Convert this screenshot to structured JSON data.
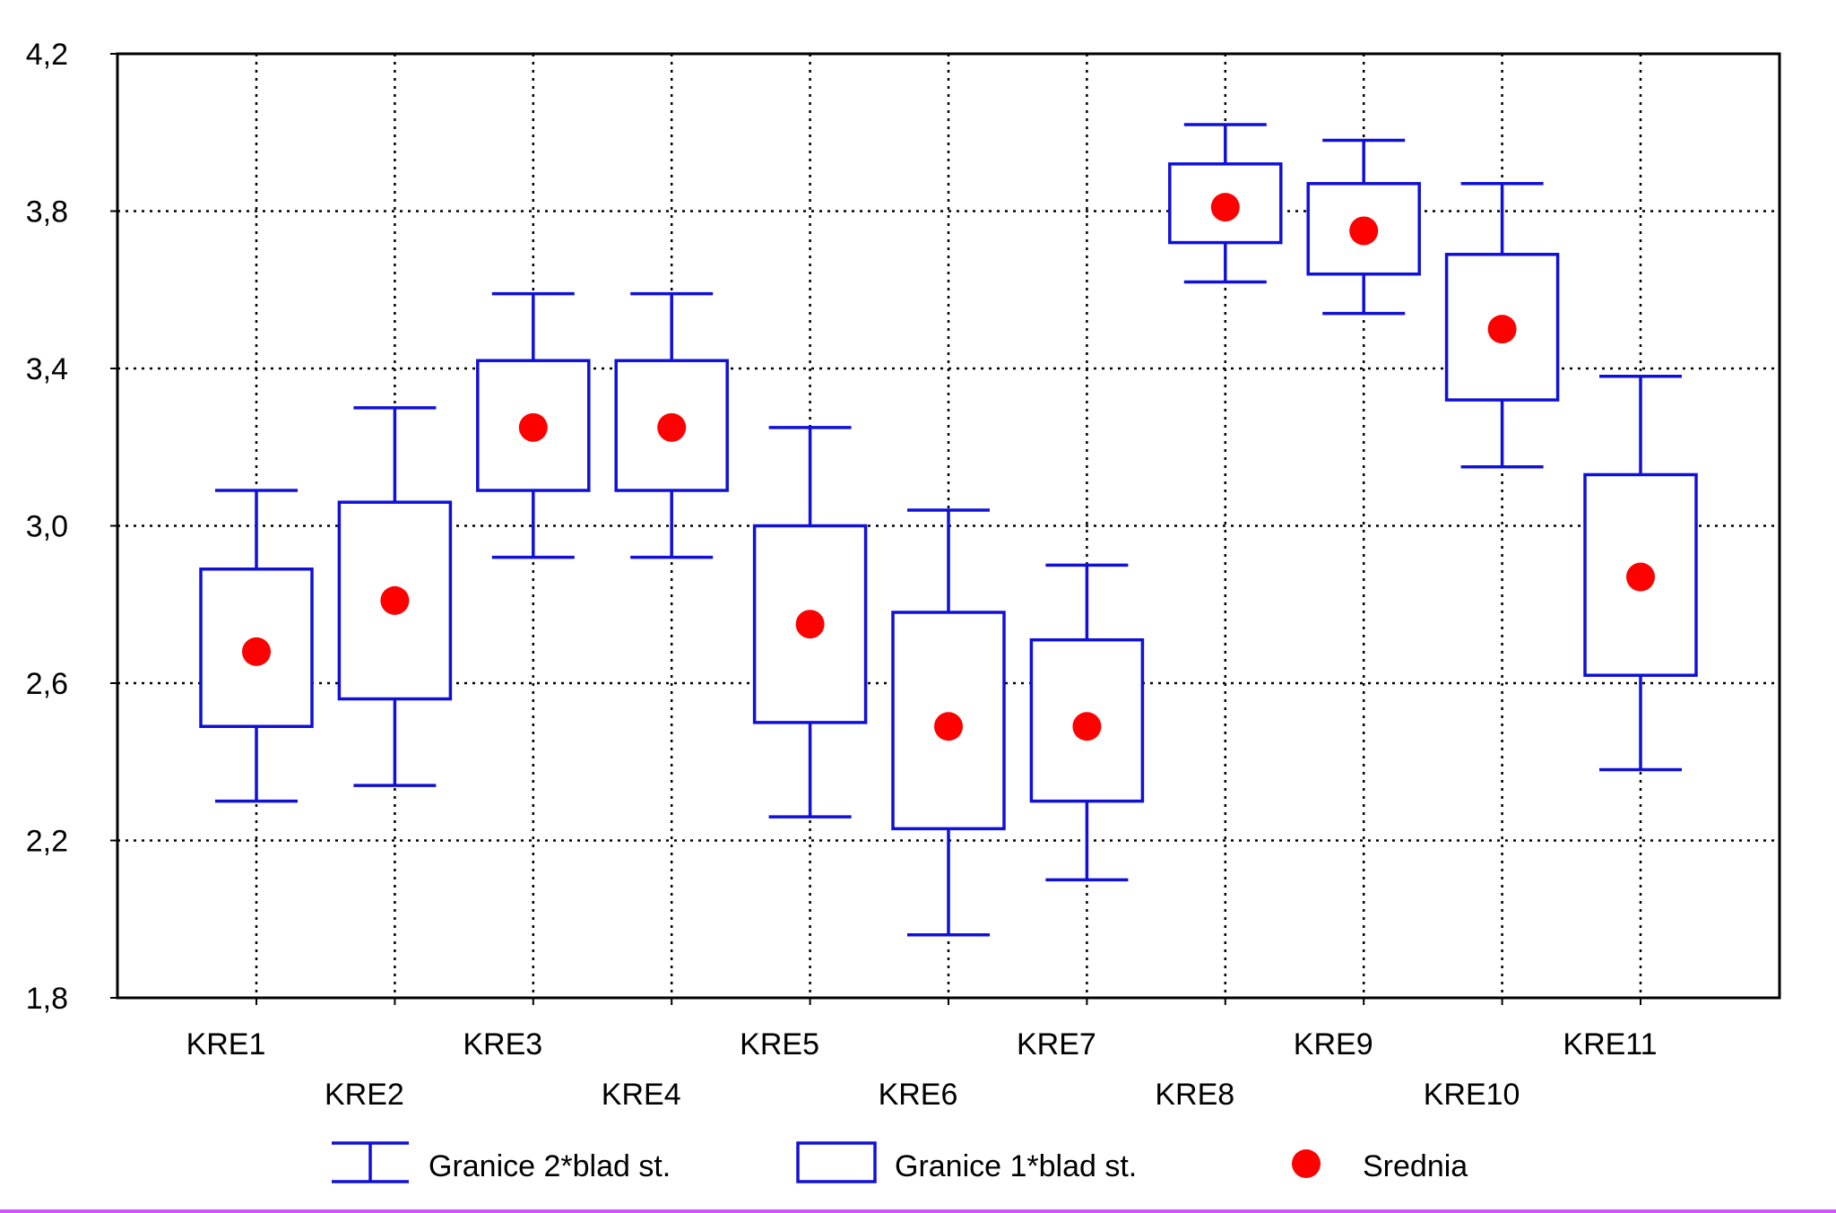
{
  "chart_data": {
    "type": "boxplot",
    "ylim": [
      1.8,
      4.2
    ],
    "yticks": [
      "4,2",
      "3,8",
      "3,4",
      "3,0",
      "2,6",
      "2,2",
      "1,8"
    ],
    "grid": true,
    "categories": [
      "KRE1",
      "KRE2",
      "KRE3",
      "KRE4",
      "KRE5",
      "KRE6",
      "KRE7",
      "KRE8",
      "KRE9",
      "KRE10",
      "KRE11"
    ],
    "mean": [
      2.68,
      2.81,
      3.25,
      3.25,
      2.75,
      2.49,
      2.49,
      3.81,
      3.75,
      3.5,
      2.87
    ],
    "se1_low": [
      2.49,
      2.56,
      3.09,
      3.09,
      2.5,
      2.23,
      2.3,
      3.72,
      3.64,
      3.32,
      2.62
    ],
    "se1_high": [
      2.89,
      3.06,
      3.42,
      3.42,
      3.0,
      2.78,
      2.71,
      3.92,
      3.87,
      3.69,
      3.13
    ],
    "se2_low": [
      2.3,
      2.34,
      2.92,
      2.92,
      2.26,
      1.96,
      2.1,
      3.62,
      3.54,
      3.15,
      2.38
    ],
    "se2_high": [
      3.09,
      3.3,
      3.59,
      3.59,
      3.25,
      3.04,
      2.9,
      4.02,
      3.98,
      3.87,
      3.38
    ],
    "legend": [
      {
        "kind": "whisker",
        "label": "Granice 2*blad st."
      },
      {
        "kind": "box",
        "label": "Granice 1*blad st."
      },
      {
        "kind": "dot",
        "label": "Srednia"
      }
    ],
    "legend_position": "bottom",
    "colors": {
      "box": "#1010d8",
      "mean": "#ff0000",
      "grid": "#000000",
      "axis": "#000000"
    }
  }
}
